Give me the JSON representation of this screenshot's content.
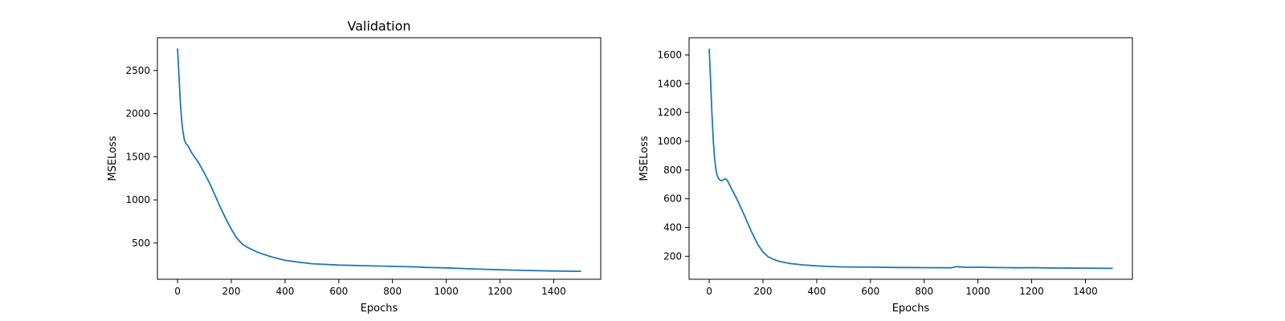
{
  "chart_data": [
    {
      "type": "line",
      "title": "Validation",
      "xlabel": "Epochs",
      "ylabel": "MSELoss",
      "xlim": [
        -75,
        1575
      ],
      "ylim": [
        80,
        2880
      ],
      "xticks": [
        0,
        200,
        400,
        600,
        800,
        1000,
        1200,
        1400
      ],
      "yticks": [
        500,
        1000,
        1500,
        2000,
        2500
      ],
      "grid": false,
      "legend": "none",
      "color": "#1f77b4",
      "series": [
        {
          "x": [
            0,
            5,
            10,
            15,
            20,
            25,
            30,
            35,
            40,
            50,
            60,
            70,
            80,
            100,
            120,
            140,
            160,
            180,
            200,
            220,
            240,
            260,
            280,
            300,
            350,
            400,
            450,
            500,
            600,
            700,
            800,
            900,
            920,
            1000,
            1100,
            1200,
            1300,
            1400,
            1500
          ],
          "y": [
            2750,
            2450,
            2150,
            1930,
            1790,
            1700,
            1660,
            1640,
            1620,
            1560,
            1510,
            1470,
            1420,
            1310,
            1190,
            1050,
            910,
            780,
            660,
            560,
            490,
            450,
            420,
            390,
            340,
            300,
            278,
            260,
            245,
            237,
            230,
            222,
            218,
            212,
            200,
            190,
            182,
            176,
            172
          ]
        }
      ]
    },
    {
      "type": "line",
      "title": "",
      "xlabel": "Epochs",
      "ylabel": "MSELoss",
      "xlim": [
        -75,
        1575
      ],
      "ylim": [
        40,
        1720
      ],
      "xticks": [
        0,
        200,
        400,
        600,
        800,
        1000,
        1200,
        1400
      ],
      "yticks": [
        200,
        400,
        600,
        800,
        1000,
        1200,
        1400,
        1600
      ],
      "grid": false,
      "legend": "none",
      "color": "#1f77b4",
      "series": [
        {
          "x": [
            0,
            5,
            10,
            15,
            20,
            25,
            30,
            35,
            40,
            45,
            50,
            55,
            60,
            65,
            70,
            80,
            90,
            100,
            120,
            140,
            160,
            180,
            200,
            220,
            240,
            260,
            280,
            300,
            350,
            400,
            450,
            500,
            600,
            700,
            800,
            900,
            920,
            940,
            960,
            1000,
            1050,
            1100,
            1150,
            1200,
            1250,
            1300,
            1400,
            1500
          ],
          "y": [
            1640,
            1420,
            1200,
            1010,
            880,
            800,
            760,
            740,
            730,
            725,
            728,
            735,
            738,
            732,
            718,
            680,
            645,
            610,
            530,
            445,
            360,
            285,
            230,
            195,
            178,
            165,
            157,
            150,
            140,
            133,
            129,
            126,
            124,
            122,
            121,
            120,
            128,
            125,
            123,
            124,
            122,
            121,
            120,
            121,
            119,
            118,
            117,
            116
          ]
        }
      ]
    }
  ]
}
